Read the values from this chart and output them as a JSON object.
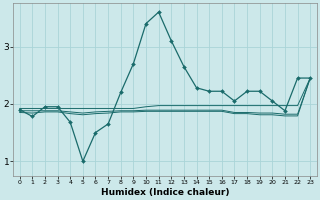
{
  "xlabel": "Humidex (Indice chaleur)",
  "bg_color": "#cce8ea",
  "grid_color": "#aad4d8",
  "line_color": "#1a6b6b",
  "x_min": -0.5,
  "x_max": 23.5,
  "y_min": 0.75,
  "y_max": 3.75,
  "yticks": [
    1,
    2,
    3
  ],
  "xticks": [
    0,
    1,
    2,
    3,
    4,
    5,
    6,
    7,
    8,
    9,
    10,
    11,
    12,
    13,
    14,
    15,
    16,
    17,
    18,
    19,
    20,
    21,
    22,
    23
  ],
  "line1_x": [
    0,
    1,
    2,
    3,
    4,
    5,
    6,
    7,
    8,
    9,
    10,
    11,
    12,
    13,
    14,
    15,
    16,
    17,
    18,
    19,
    20,
    21,
    22,
    23
  ],
  "line1_y": [
    1.9,
    1.78,
    1.95,
    1.95,
    1.68,
    1.0,
    1.5,
    1.65,
    2.2,
    2.7,
    3.4,
    3.6,
    3.1,
    2.65,
    2.28,
    2.22,
    2.22,
    2.05,
    2.22,
    2.22,
    2.05,
    1.88,
    2.45,
    2.45
  ],
  "line2_x": [
    0,
    1,
    2,
    3,
    4,
    5,
    6,
    7,
    8,
    9,
    10,
    11,
    12,
    13,
    14,
    15,
    16,
    17,
    18,
    19,
    20,
    21,
    22,
    23
  ],
  "line2_y": [
    1.92,
    1.92,
    1.92,
    1.92,
    1.92,
    1.92,
    1.92,
    1.92,
    1.92,
    1.92,
    1.95,
    1.97,
    1.97,
    1.97,
    1.97,
    1.97,
    1.97,
    1.97,
    1.97,
    1.97,
    1.97,
    1.97,
    1.97,
    2.45
  ],
  "line3_x": [
    0,
    1,
    2,
    3,
    4,
    5,
    6,
    7,
    8,
    9,
    10,
    11,
    12,
    13,
    14,
    15,
    16,
    17,
    18,
    19,
    20,
    21,
    22,
    23
  ],
  "line3_y": [
    1.88,
    1.88,
    1.88,
    1.88,
    1.86,
    1.84,
    1.86,
    1.87,
    1.88,
    1.88,
    1.89,
    1.89,
    1.89,
    1.89,
    1.89,
    1.89,
    1.89,
    1.85,
    1.85,
    1.84,
    1.84,
    1.82,
    1.82,
    2.45
  ],
  "line4_x": [
    0,
    1,
    2,
    3,
    4,
    5,
    6,
    7,
    8,
    9,
    10,
    11,
    12,
    13,
    14,
    15,
    16,
    17,
    18,
    19,
    20,
    21,
    22,
    23
  ],
  "line4_y": [
    1.85,
    1.84,
    1.86,
    1.86,
    1.83,
    1.81,
    1.83,
    1.84,
    1.86,
    1.86,
    1.87,
    1.87,
    1.87,
    1.87,
    1.87,
    1.87,
    1.87,
    1.83,
    1.83,
    1.81,
    1.81,
    1.79,
    1.79,
    2.45
  ]
}
